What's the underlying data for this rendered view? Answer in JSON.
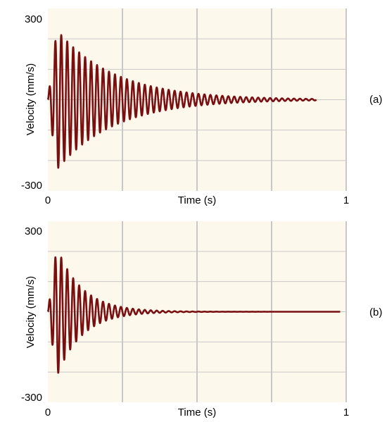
{
  "chart_data": [
    {
      "type": "line",
      "panel_label": "(a)",
      "xlabel": "Time (s)",
      "ylabel": "Velocity (mm/s)",
      "xlim": [
        0,
        1
      ],
      "ylim": [
        -300,
        300
      ],
      "x_ticks": [
        "0",
        "1"
      ],
      "y_ticks": [
        "300",
        "-300"
      ],
      "grid": true,
      "colors": {
        "background": "#fdf8ec",
        "grid": "#c8c8c8",
        "line": "#7a0f12"
      },
      "signal": {
        "description": "decaying oscillation",
        "start_time": 0.0,
        "end_time": 0.9,
        "peak_time": 0.03,
        "peak_amplitude": 230,
        "oscillation_frequency": 50,
        "decay_rate": 5.2
      },
      "x": [
        0.0,
        0.03,
        0.1,
        0.2,
        0.3,
        0.4,
        0.5,
        0.6,
        0.7,
        0.8,
        0.9
      ],
      "values": [
        0,
        230,
        175,
        115,
        70,
        40,
        22,
        12,
        6,
        3,
        1
      ]
    },
    {
      "type": "line",
      "panel_label": "(b)",
      "xlabel": "Time (s)",
      "ylabel": "Velocity (mm/s)",
      "xlim": [
        0,
        1
      ],
      "ylim": [
        -300,
        300
      ],
      "x_ticks": [
        "0",
        "1"
      ],
      "y_ticks": [
        "300",
        "-300"
      ],
      "grid": true,
      "colors": {
        "background": "#fdf8ec",
        "grid": "#c8c8c8",
        "line": "#7a0f12"
      },
      "signal": {
        "description": "fast decaying oscillation",
        "start_time": 0.0,
        "end_time": 0.98,
        "peak_time": 0.03,
        "peak_amplitude": 215,
        "oscillation_frequency": 50,
        "decay_rate": 12
      },
      "x": [
        0.0,
        0.03,
        0.1,
        0.2,
        0.3,
        0.4,
        0.5,
        0.6,
        0.7,
        0.8,
        0.9,
        0.98
      ],
      "values": [
        0,
        215,
        110,
        40,
        12,
        4,
        2,
        2,
        1,
        2,
        1,
        0
      ]
    }
  ]
}
